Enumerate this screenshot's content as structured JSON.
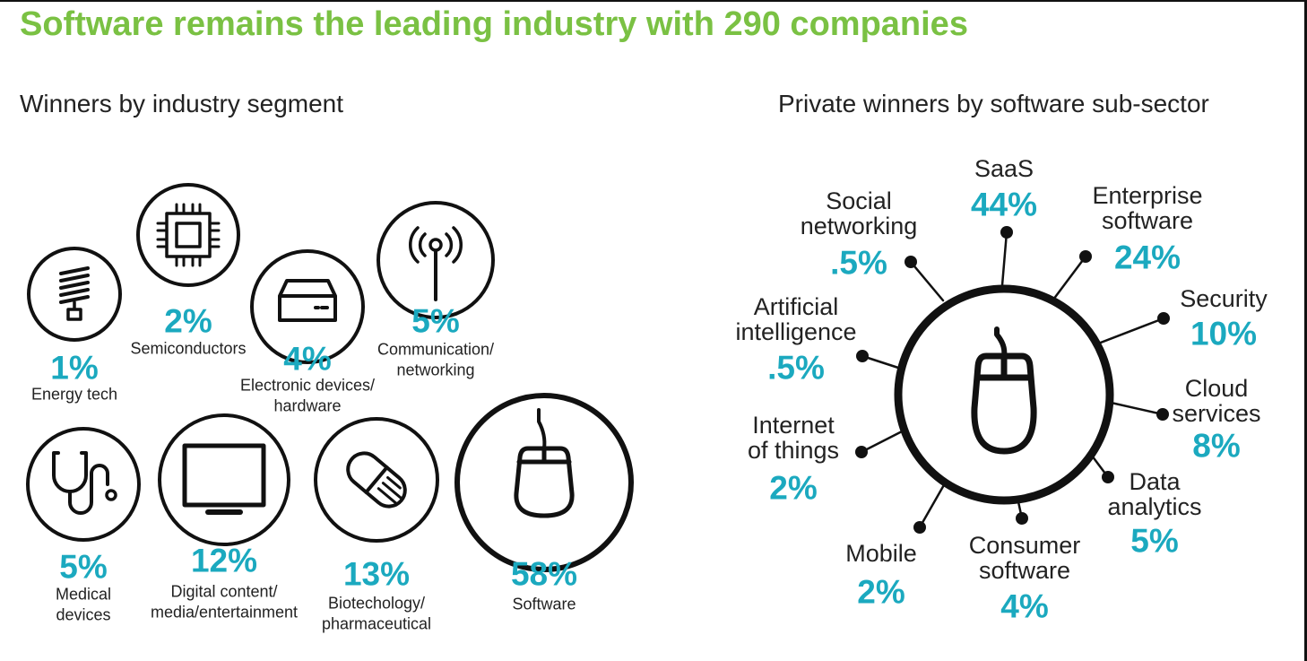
{
  "title": "Software remains the leading industry with 290 companies",
  "colors": {
    "title": "#7ac143",
    "percent": "#1ba9bf",
    "outline": "#111111"
  },
  "chart_data": [
    {
      "type": "table",
      "title": "Winners by industry segment",
      "unit": "%",
      "items": [
        {
          "label": "Energy tech",
          "lines": [
            "Energy tech"
          ],
          "value": "1%",
          "icon": "light-bulb-icon"
        },
        {
          "label": "Semiconductors",
          "lines": [
            "Semiconductors"
          ],
          "value": "2%",
          "icon": "chip-icon"
        },
        {
          "label": "Electronic devices/ hardware",
          "lines": [
            "Electronic devices/",
            "hardware"
          ],
          "value": "4%",
          "icon": "hard-drive-icon"
        },
        {
          "label": "Communication/ networking",
          "lines": [
            "Communication/",
            "networking"
          ],
          "value": "5%",
          "icon": "antenna-icon"
        },
        {
          "label": "Medical devices",
          "lines": [
            "Medical",
            "devices"
          ],
          "value": "5%",
          "icon": "stethoscope-icon"
        },
        {
          "label": "Digital content/ media/entertainment",
          "lines": [
            "Digital content/",
            "media/entertainment"
          ],
          "value": "12%",
          "icon": "monitor-icon"
        },
        {
          "label": "Biotechology/ pharmaceutical",
          "lines": [
            "Biotechology/",
            "pharmaceutical"
          ],
          "value": "13%",
          "icon": "pill-icon"
        },
        {
          "label": "Software",
          "lines": [
            "Software"
          ],
          "value": "58%",
          "icon": "mouse-icon"
        }
      ]
    },
    {
      "type": "table",
      "title": "Private winners by software sub-sector",
      "unit": "%",
      "center_icon": "mouse-icon",
      "items": [
        {
          "label": "SaaS",
          "lines": [
            "SaaS"
          ],
          "value": "44%"
        },
        {
          "label": "Enterprise software",
          "lines": [
            "Enterprise",
            "software"
          ],
          "value": "24%"
        },
        {
          "label": "Security",
          "lines": [
            "Security"
          ],
          "value": "10%"
        },
        {
          "label": "Cloud services",
          "lines": [
            "Cloud",
            "services"
          ],
          "value": "8%"
        },
        {
          "label": "Data analytics",
          "lines": [
            "Data",
            "analytics"
          ],
          "value": "5%"
        },
        {
          "label": "Consumer software",
          "lines": [
            "Consumer",
            "software"
          ],
          "value": "4%"
        },
        {
          "label": "Mobile",
          "lines": [
            "Mobile"
          ],
          "value": "2%"
        },
        {
          "label": "Internet of things",
          "lines": [
            "Internet",
            "of things"
          ],
          "value": "2%"
        },
        {
          "label": "Artificial intelligence",
          "lines": [
            "Artificial",
            "intelligence"
          ],
          "value": ".5%"
        },
        {
          "label": "Social networking",
          "lines": [
            "Social",
            "networking"
          ],
          "value": ".5%"
        }
      ]
    }
  ]
}
